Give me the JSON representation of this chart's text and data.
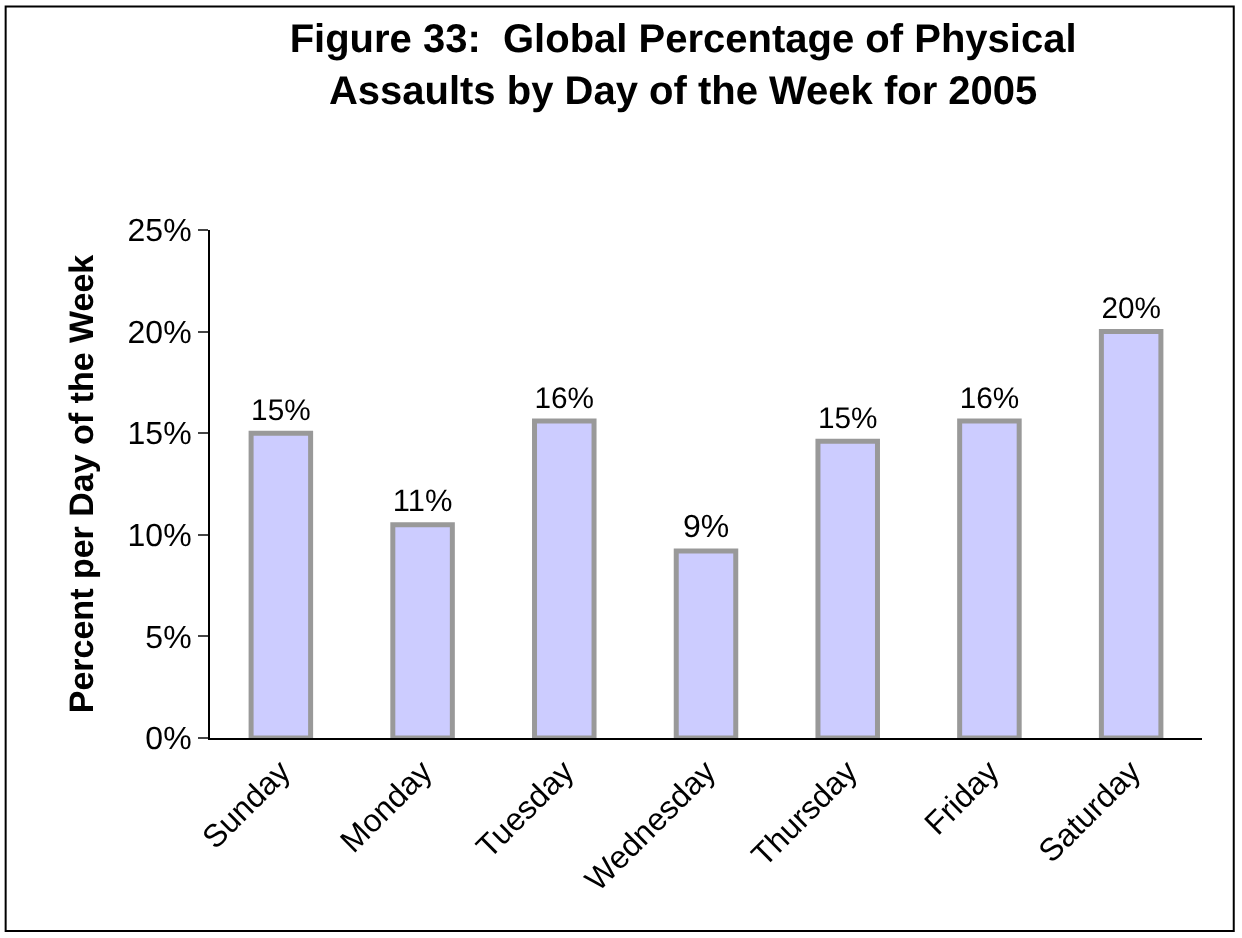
{
  "chart_data": {
    "type": "bar",
    "title": "Figure 33:  Global Percentage of Physical\nAssaults by Day of the Week for 2005",
    "ylabel": "Percent per Day of the Week",
    "categories": [
      "Sunday",
      "Monday",
      "Tuesday",
      "Wednesday",
      "Thursday",
      "Friday",
      "Saturday"
    ],
    "values": [
      15,
      10.5,
      15.6,
      9.2,
      14.6,
      15.6,
      20
    ],
    "value_labels": [
      "15%",
      "11%",
      "16%",
      "9%",
      "15%",
      "16%",
      "20%"
    ],
    "color": "#ccccff",
    "ylim": [
      0,
      25
    ],
    "yticks": [
      {
        "value": 0,
        "label": "0%"
      },
      {
        "value": 5,
        "label": "5%"
      },
      {
        "value": 10,
        "label": "10%"
      },
      {
        "value": 15,
        "label": "15%"
      },
      {
        "value": 20,
        "label": "20%"
      },
      {
        "value": 25,
        "label": "25%"
      }
    ],
    "legend": false
  }
}
